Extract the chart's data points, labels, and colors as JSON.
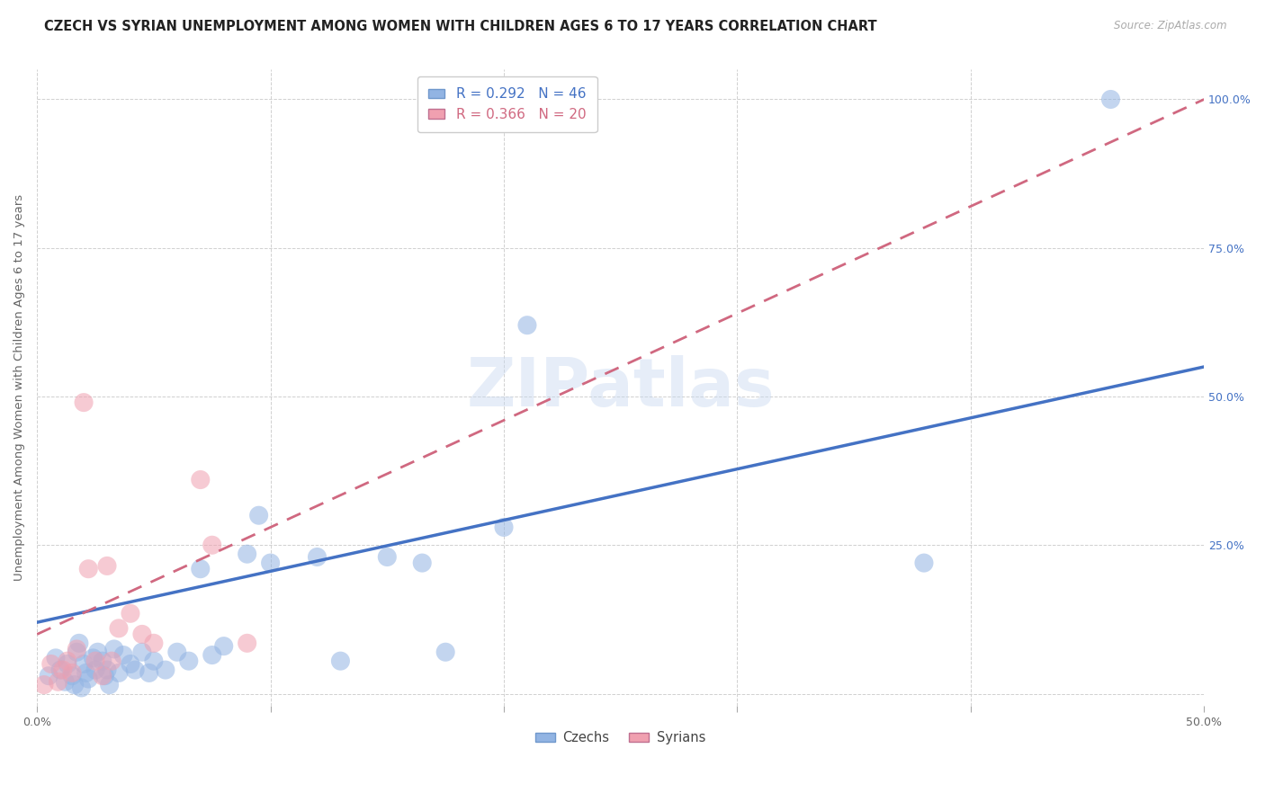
{
  "title": "CZECH VS SYRIAN UNEMPLOYMENT AMONG WOMEN WITH CHILDREN AGES 6 TO 17 YEARS CORRELATION CHART",
  "source": "Source: ZipAtlas.com",
  "ylabel": "Unemployment Among Women with Children Ages 6 to 17 years",
  "xlim": [
    0.0,
    0.5
  ],
  "ylim": [
    -0.02,
    1.05
  ],
  "xtick_positions": [
    0.0,
    0.1,
    0.2,
    0.3,
    0.4,
    0.5
  ],
  "xtick_labels": [
    "0.0%",
    "",
    "",
    "",
    "",
    "50.0%"
  ],
  "ytick_positions": [
    0.0,
    0.25,
    0.5,
    0.75,
    1.0
  ],
  "ytick_labels": [
    "",
    "25.0%",
    "50.0%",
    "75.0%",
    "100.0%"
  ],
  "czech_color": "#92b4e3",
  "syrian_color": "#f0a0b0",
  "czech_line_color": "#4472c4",
  "syrian_line_color": "#d06880",
  "czech_R": "0.292",
  "czech_N": "46",
  "syrian_R": "0.366",
  "syrian_N": "20",
  "watermark_text": "ZIPatlas",
  "czech_x": [
    0.005,
    0.008,
    0.01,
    0.012,
    0.013,
    0.015,
    0.016,
    0.017,
    0.018,
    0.019,
    0.02,
    0.021,
    0.022,
    0.024,
    0.025,
    0.026,
    0.028,
    0.029,
    0.03,
    0.031,
    0.033,
    0.035,
    0.037,
    0.04,
    0.042,
    0.045,
    0.048,
    0.05,
    0.055,
    0.06,
    0.065,
    0.07,
    0.075,
    0.08,
    0.09,
    0.095,
    0.1,
    0.12,
    0.13,
    0.15,
    0.165,
    0.175,
    0.2,
    0.21,
    0.38,
    0.46
  ],
  "czech_y": [
    0.03,
    0.06,
    0.04,
    0.02,
    0.05,
    0.03,
    0.015,
    0.07,
    0.085,
    0.01,
    0.05,
    0.035,
    0.025,
    0.06,
    0.04,
    0.07,
    0.055,
    0.03,
    0.04,
    0.015,
    0.075,
    0.035,
    0.065,
    0.05,
    0.04,
    0.07,
    0.035,
    0.055,
    0.04,
    0.07,
    0.055,
    0.21,
    0.065,
    0.08,
    0.235,
    0.3,
    0.22,
    0.23,
    0.055,
    0.23,
    0.22,
    0.07,
    0.28,
    0.62,
    0.22,
    1.0
  ],
  "syrian_x": [
    0.003,
    0.006,
    0.009,
    0.011,
    0.013,
    0.015,
    0.017,
    0.02,
    0.022,
    0.025,
    0.028,
    0.03,
    0.032,
    0.035,
    0.04,
    0.045,
    0.05,
    0.07,
    0.075,
    0.09
  ],
  "syrian_y": [
    0.015,
    0.05,
    0.02,
    0.04,
    0.055,
    0.035,
    0.075,
    0.49,
    0.21,
    0.055,
    0.03,
    0.215,
    0.055,
    0.11,
    0.135,
    0.1,
    0.085,
    0.36,
    0.25,
    0.085
  ],
  "czech_line_x": [
    0.0,
    0.5
  ],
  "czech_line_y": [
    0.12,
    0.55
  ],
  "syrian_line_x": [
    0.0,
    0.5
  ],
  "syrian_line_y": [
    0.1,
    1.0
  ],
  "background_color": "#ffffff",
  "grid_color": "#d0d0d0",
  "title_fontsize": 10.5,
  "ylabel_fontsize": 9.5,
  "tick_fontsize": 9,
  "legend_fontsize": 11
}
